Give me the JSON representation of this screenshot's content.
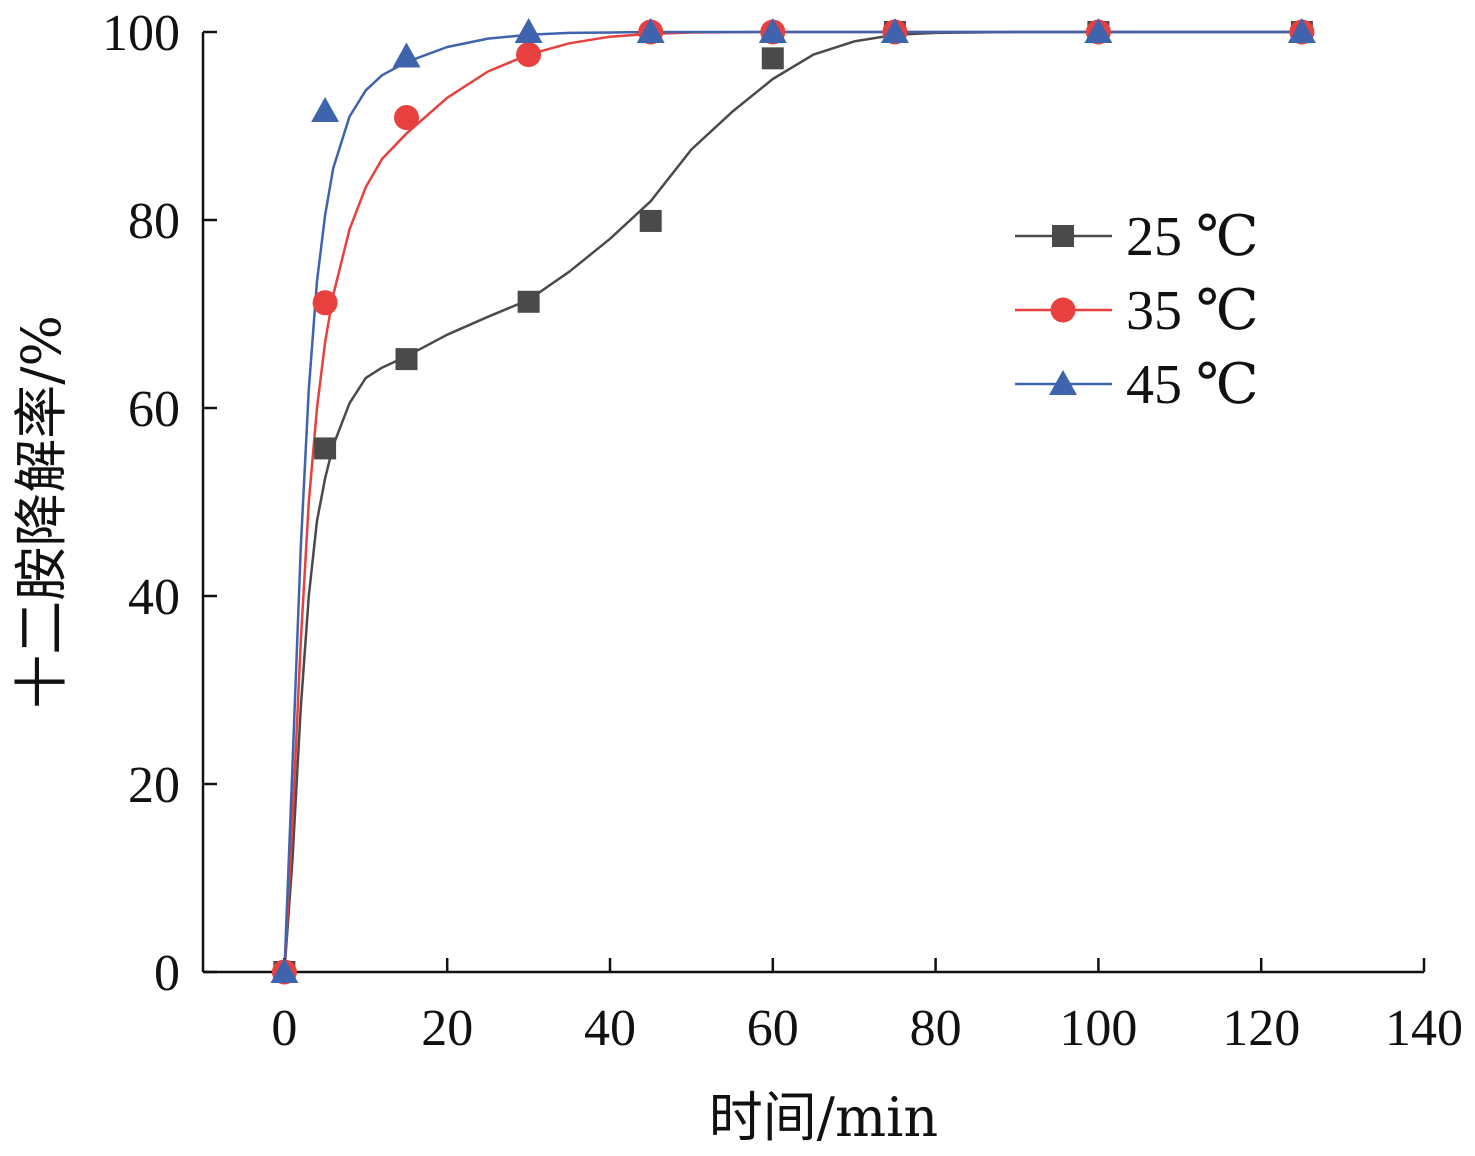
{
  "chart_data": {
    "type": "line",
    "title": "",
    "xlabel": "时间/min",
    "ylabel": "十二胺降解率/%",
    "xlim": [
      -10,
      140
    ],
    "ylim": [
      0,
      100
    ],
    "x_ticks": [
      0,
      20,
      40,
      60,
      80,
      100,
      120,
      140
    ],
    "y_ticks": [
      0,
      20,
      40,
      60,
      80,
      100
    ],
    "x_tick_labels": [
      "0",
      "20",
      "40",
      "60",
      "80",
      "100",
      "120",
      "140"
    ],
    "y_tick_labels": [
      "0",
      "20",
      "40",
      "60",
      "80",
      "100"
    ],
    "grid": false,
    "legend_position": "right",
    "series": [
      {
        "name": "25 ℃",
        "marker": "square",
        "color": "#4a4a4a",
        "x": [
          0,
          5,
          15,
          30,
          45,
          60,
          75,
          100,
          125
        ],
        "y": [
          0,
          55.7,
          65.2,
          71.3,
          79.9,
          97.2,
          100,
          100,
          100
        ],
        "fit_x": [
          0,
          1,
          2,
          3,
          4,
          5,
          6,
          8,
          10,
          12,
          15,
          20,
          25,
          30,
          35,
          40,
          45,
          50,
          55,
          60,
          65,
          70,
          75,
          80,
          90,
          100,
          110,
          125
        ],
        "fit_y": [
          0,
          12,
          28,
          40,
          48,
          52.5,
          56,
          60.5,
          63.2,
          64.3,
          65.5,
          67.8,
          69.7,
          71.5,
          74.5,
          78,
          82,
          87.5,
          91.5,
          95,
          97.6,
          99,
          99.7,
          99.9,
          100,
          100,
          100,
          100
        ]
      },
      {
        "name": "35 ℃",
        "marker": "circle",
        "color": "#e8403f",
        "x": [
          0,
          5,
          15,
          30,
          45,
          60,
          75,
          100,
          125
        ],
        "y": [
          0,
          71.2,
          90.9,
          97.6,
          100,
          100,
          100,
          100,
          100
        ],
        "fit_x": [
          0,
          1,
          2,
          3,
          4,
          5,
          6,
          8,
          10,
          12,
          15,
          20,
          25,
          30,
          35,
          40,
          45,
          50,
          60,
          75,
          100,
          125
        ],
        "fit_y": [
          0,
          16,
          35,
          50,
          60,
          67,
          72,
          79,
          83.5,
          86.5,
          89.2,
          93,
          95.8,
          97.6,
          98.8,
          99.5,
          99.8,
          99.95,
          100,
          100,
          100,
          100
        ]
      },
      {
        "name": "45 ℃",
        "marker": "triangle",
        "color": "#4063ad",
        "x": [
          0,
          5,
          15,
          30,
          45,
          60,
          75,
          100,
          125
        ],
        "y": [
          0,
          91.6,
          97.4,
          100,
          100,
          100,
          100,
          100,
          100
        ],
        "fit_x": [
          0,
          1,
          2,
          3,
          4,
          5,
          6,
          8,
          10,
          12,
          15,
          20,
          25,
          30,
          35,
          40,
          45,
          60,
          75,
          100,
          125
        ],
        "fit_y": [
          0,
          22,
          45,
          62,
          73.5,
          80.5,
          85.5,
          91,
          93.8,
          95.4,
          96.8,
          98.4,
          99.3,
          99.7,
          99.9,
          99.95,
          100,
          100,
          100,
          100,
          100
        ]
      }
    ]
  }
}
